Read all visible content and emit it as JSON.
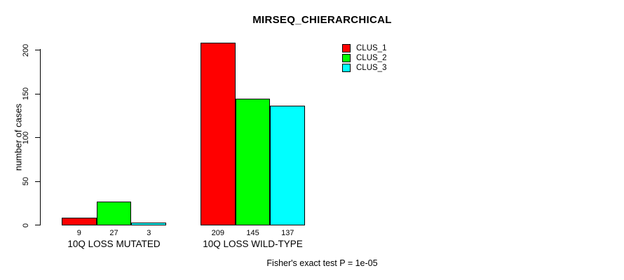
{
  "chart_data": {
    "type": "bar",
    "title": "MIRSEQ_CHIERARCHICAL",
    "sub": "Fisher's exact test P = 1e-05",
    "ylabel": "number of cases",
    "xlabel": "",
    "categories": [
      "10Q LOSS MUTATED",
      "10Q LOSS WILD-TYPE"
    ],
    "series": [
      {
        "name": "CLUS_1",
        "color": "#ff0000",
        "values": [
          9,
          209
        ]
      },
      {
        "name": "CLUS_2",
        "color": "#00ff00",
        "values": [
          27,
          145
        ]
      },
      {
        "name": "CLUS_3",
        "color": "#00ffff",
        "values": [
          3,
          137
        ]
      }
    ],
    "bar_value_labels": [
      [
        "9",
        "27",
        "3"
      ],
      [
        "209",
        "145",
        "137"
      ]
    ],
    "yticks": [
      0,
      50,
      100,
      150,
      200
    ],
    "ylim": [
      0,
      210
    ],
    "grid": false,
    "legend_position": "top-right",
    "legend_entries": [
      "CLUS_1",
      "CLUS_2",
      "CLUS_3"
    ],
    "bar_border_color": "#000000",
    "background_color": "#ffffff"
  }
}
